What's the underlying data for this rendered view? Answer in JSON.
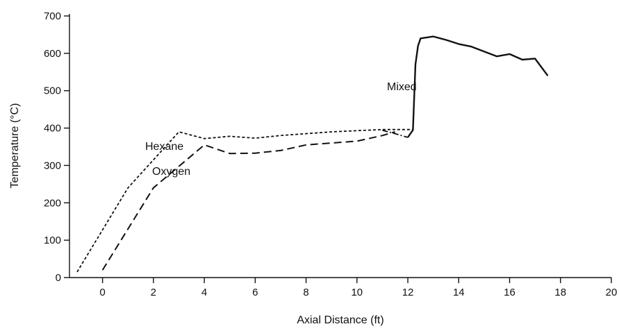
{
  "chart_data": {
    "type": "line",
    "xlabel": "Axial Distance (ft)",
    "ylabel": "Temperature (°C)",
    "xlim": [
      -1.3,
      20
    ],
    "ylim": [
      0,
      700
    ],
    "x_ticks": [
      0,
      2,
      4,
      6,
      8,
      10,
      12,
      14,
      16,
      18,
      20
    ],
    "y_ticks": [
      0,
      100,
      200,
      300,
      400,
      500,
      600,
      700
    ],
    "grid": false,
    "legend": "none",
    "series": [
      {
        "name": "Hexane",
        "style": "short-dash",
        "x": [
          -1.0,
          1.0,
          3.0,
          4.0,
          5.0,
          6.0,
          7.0,
          8.0,
          9.0,
          10.0,
          11.0,
          12.2
        ],
        "y": [
          15,
          240,
          390,
          372,
          378,
          373,
          380,
          385,
          390,
          393,
          396,
          396
        ]
      },
      {
        "name": "Oxygen",
        "style": "long-dash",
        "x": [
          0.0,
          2.0,
          4.0,
          5.0,
          6.0,
          7.0,
          8.0,
          9.0,
          10.0,
          11.0,
          11.5
        ],
        "y": [
          20,
          240,
          355,
          332,
          333,
          340,
          355,
          360,
          365,
          380,
          390
        ]
      },
      {
        "name": "",
        "style": "dash-dot",
        "x": [
          11.0,
          11.5,
          12.0
        ],
        "y": [
          394,
          385,
          375
        ]
      },
      {
        "name": "Mixed",
        "style": "solid",
        "x": [
          12.0,
          12.2,
          12.3,
          12.4,
          12.5,
          13.0,
          13.5,
          14.0,
          14.5,
          15.0,
          15.5,
          16.0,
          16.5,
          17.0,
          17.5
        ],
        "y": [
          375,
          395,
          570,
          620,
          640,
          645,
          636,
          625,
          618,
          605,
          592,
          598,
          583,
          586,
          540
        ]
      }
    ],
    "labels": {
      "hexane": "Hexane",
      "oxygen": "Oxygen",
      "mixed": "Mixed"
    }
  }
}
